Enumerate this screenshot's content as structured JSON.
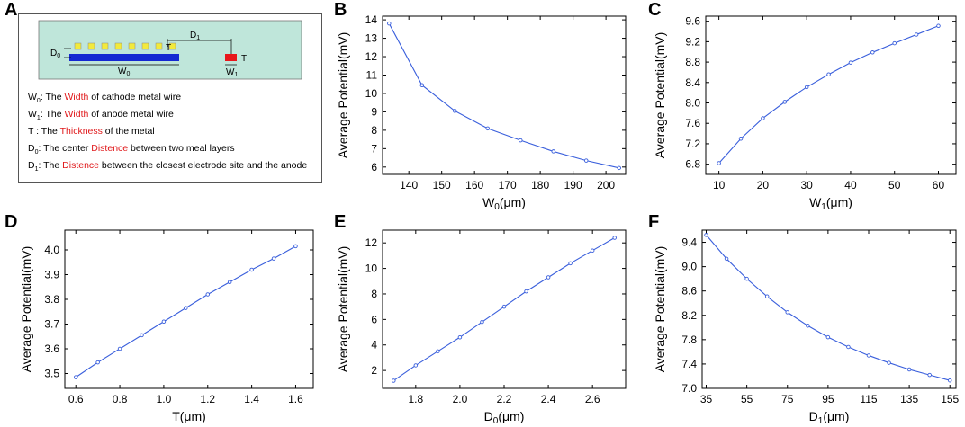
{
  "panels": {
    "A": "A",
    "B": "B",
    "C": "C",
    "D": "D",
    "E": "E",
    "F": "F"
  },
  "diagram": {
    "labels": {
      "w0": "W",
      "w0_sub": "0",
      "w1": "W",
      "w1_sub": "1",
      "t_top": "T",
      "t_right": "T",
      "d0": "D",
      "d0_sub": "0",
      "d1": "D",
      "d1_sub": "1"
    },
    "legend": [
      {
        "sym": "W",
        "sub": "0",
        "pre": ": The ",
        "key": "Width",
        "post": " of cathode metal wire"
      },
      {
        "sym": "W",
        "sub": "1",
        "pre": ": The ",
        "key": "Width",
        "post": " of anode metal wire"
      },
      {
        "sym": "T",
        "sub": "",
        "pre": " : The ",
        "key": "Thickness",
        "post": " of the metal"
      },
      {
        "sym": "D",
        "sub": "0",
        "pre": ": The center ",
        "key": "Distence",
        "post": " between  two meal layers"
      },
      {
        "sym": "D",
        "sub": "1",
        "pre": ": The ",
        "key": "Distence",
        "post": " between  the closest electrode site and  the anode"
      }
    ],
    "colors": {
      "background": "#bfe6da",
      "cathode": "#1428d2",
      "anode": "#e8161b",
      "sites": "#f2ea3c"
    }
  },
  "chart_data": [
    {
      "id": "B",
      "type": "line",
      "xlabel": "W",
      "xlabel_sub": "0",
      "xlabel_unit": "(μm)",
      "ylabel": "Average Potential(mV)",
      "xlim": [
        132,
        206
      ],
      "ylim": [
        5.6,
        14.2
      ],
      "xticks": [
        140,
        150,
        160,
        170,
        180,
        190,
        200
      ],
      "yticks": [
        6,
        7,
        8,
        9,
        10,
        11,
        12,
        13,
        14
      ],
      "x": [
        134,
        144,
        154,
        164,
        174,
        184,
        194,
        204
      ],
      "y": [
        13.8,
        10.45,
        9.05,
        8.1,
        7.45,
        6.85,
        6.35,
        5.95
      ],
      "color": "#3a5fdc"
    },
    {
      "id": "C",
      "type": "line",
      "xlabel": "W",
      "xlabel_sub": "1",
      "xlabel_unit": "(μm)",
      "ylabel": "Average Potential(mV)",
      "xlim": [
        7,
        64
      ],
      "ylim": [
        6.6,
        9.7
      ],
      "xticks": [
        10,
        20,
        30,
        40,
        50,
        60
      ],
      "yticks": [
        "6.8",
        "7.2",
        "7.6",
        "8.0",
        "8.4",
        "8.8",
        "9.2",
        "9.6"
      ],
      "x": [
        10,
        15,
        20,
        25,
        30,
        35,
        40,
        45,
        50,
        55,
        60
      ],
      "y": [
        6.82,
        7.3,
        7.7,
        8.02,
        8.31,
        8.56,
        8.79,
        8.99,
        9.17,
        9.34,
        9.51
      ],
      "color": "#3a5fdc"
    },
    {
      "id": "D",
      "type": "line",
      "xlabel": "T",
      "xlabel_sub": "",
      "xlabel_unit": "(μm)",
      "ylabel": "Average Potential(mV)",
      "xlim": [
        0.55,
        1.68
      ],
      "ylim": [
        3.44,
        4.08
      ],
      "xticks": [
        "0.6",
        "0.8",
        "1.0",
        "1.2",
        "1.4",
        "1.6"
      ],
      "yticks": [
        "3.5",
        "3.6",
        "3.7",
        "3.8",
        "3.9",
        "4.0"
      ],
      "x": [
        0.6,
        0.7,
        0.8,
        0.9,
        1.0,
        1.1,
        1.2,
        1.3,
        1.4,
        1.5,
        1.6
      ],
      "y": [
        3.485,
        3.545,
        3.6,
        3.655,
        3.71,
        3.765,
        3.82,
        3.87,
        3.92,
        3.965,
        4.015
      ],
      "color": "#3a5fdc"
    },
    {
      "id": "E",
      "type": "line",
      "xlabel": "D",
      "xlabel_sub": "0",
      "xlabel_unit": "(μm)",
      "ylabel": "Average Potential(mV)",
      "xlim": [
        1.65,
        2.75
      ],
      "ylim": [
        0.6,
        13.0
      ],
      "xticks": [
        "1.8",
        "2.0",
        "2.2",
        "2.4",
        "2.6"
      ],
      "yticks": [
        2,
        4,
        6,
        8,
        10,
        12
      ],
      "x": [
        1.7,
        1.8,
        1.9,
        2.0,
        2.1,
        2.2,
        2.3,
        2.4,
        2.5,
        2.6,
        2.7
      ],
      "y": [
        1.2,
        2.4,
        3.5,
        4.6,
        5.8,
        7.0,
        8.2,
        9.3,
        10.4,
        11.4,
        12.4
      ],
      "color": "#3a5fdc"
    },
    {
      "id": "F",
      "type": "line",
      "xlabel": "D",
      "xlabel_sub": "1",
      "xlabel_unit": "(μm)",
      "ylabel": "Average Potential(mV)",
      "xlim": [
        33,
        158
      ],
      "ylim": [
        7.0,
        9.6
      ],
      "xticks": [
        35,
        55,
        75,
        95,
        115,
        135,
        155
      ],
      "yticks": [
        "7.0",
        "7.4",
        "7.8",
        "8.2",
        "8.6",
        "9.0",
        "9.4"
      ],
      "x": [
        35,
        45,
        55,
        65,
        75,
        85,
        95,
        105,
        115,
        125,
        135,
        145,
        155
      ],
      "y": [
        9.52,
        9.13,
        8.8,
        8.51,
        8.25,
        8.03,
        7.84,
        7.68,
        7.54,
        7.42,
        7.31,
        7.22,
        7.13
      ],
      "color": "#3a5fdc"
    }
  ]
}
